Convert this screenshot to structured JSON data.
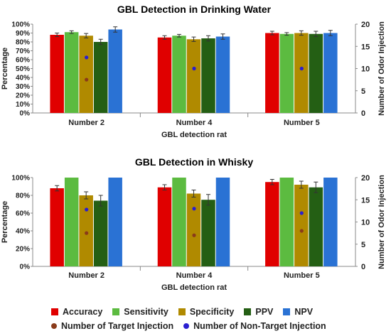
{
  "chart_data": [
    {
      "type": "bar",
      "title": "GBL Detection in Drinking Water",
      "xlabel": "GBL detection rat",
      "ylabel": "Percentage",
      "y2label": "Number of Odor Injection",
      "ylim": [
        0,
        100
      ],
      "y2lim": [
        0,
        20
      ],
      "yticks": [
        "0%",
        "10%",
        "20%",
        "30%",
        "40%",
        "50%",
        "60%",
        "70%",
        "80%",
        "90%",
        "100%"
      ],
      "y2ticks": [
        "0",
        "5",
        "10",
        "15",
        "20"
      ],
      "categories": [
        "Number 2",
        "Number 4",
        "Number 5"
      ],
      "series": [
        {
          "name": "Accuracy",
          "values": [
            88,
            85,
            90
          ],
          "errors": [
            2,
            2,
            2
          ]
        },
        {
          "name": "Sensitivity",
          "values": [
            91,
            87,
            89
          ],
          "errors": [
            1.5,
            1.5,
            1.5
          ]
        },
        {
          "name": "Specificity",
          "values": [
            87,
            83,
            90
          ],
          "errors": [
            2.5,
            2.5,
            2.5
          ]
        },
        {
          "name": "PPV",
          "values": [
            80,
            84,
            89
          ],
          "errors": [
            3,
            3,
            3
          ]
        },
        {
          "name": "NPV",
          "values": [
            94,
            86,
            90
          ],
          "errors": [
            3,
            3,
            3
          ]
        }
      ],
      "dot_series": [
        {
          "name": "Number of Target Injection",
          "values": [
            7.5,
            10,
            10
          ]
        },
        {
          "name": "Number of Non-Target Injection",
          "values": [
            12.5,
            10,
            10
          ]
        }
      ],
      "grid": false
    },
    {
      "type": "bar",
      "title": "GBL Detection in Whisky",
      "xlabel": "GBL detection rat",
      "ylabel": "Percentage",
      "y2label": "Number of Odor Injection",
      "ylim": [
        0,
        100
      ],
      "y2lim": [
        0,
        20
      ],
      "yticks": [
        "0%",
        "20%",
        "40%",
        "60%",
        "80%",
        "100%"
      ],
      "y2ticks": [
        "0",
        "5",
        "10",
        "15",
        "20"
      ],
      "categories": [
        "Number 2",
        "Number 4",
        "Number 5"
      ],
      "series": [
        {
          "name": "Accuracy",
          "values": [
            88,
            89,
            95
          ],
          "errors": [
            3,
            3,
            3
          ]
        },
        {
          "name": "Sensitivity",
          "values": [
            100,
            100,
            100
          ],
          "errors": [
            0,
            0,
            0
          ]
        },
        {
          "name": "Specificity",
          "values": [
            80,
            82,
            92
          ],
          "errors": [
            4,
            4,
            4
          ]
        },
        {
          "name": "PPV",
          "values": [
            74,
            75,
            89
          ],
          "errors": [
            6,
            6,
            6
          ]
        },
        {
          "name": "NPV",
          "values": [
            100,
            100,
            100
          ],
          "errors": [
            0,
            0,
            0
          ]
        }
      ],
      "dot_series": [
        {
          "name": "Number of Target Injection",
          "values": [
            7.5,
            7,
            8
          ]
        },
        {
          "name": "Number of Non-Target Injection",
          "values": [
            12.8,
            13,
            12
          ]
        }
      ],
      "grid": false
    }
  ],
  "colors": {
    "Accuracy": "#e00000",
    "Sensitivity": "#5cbb40",
    "Specificity": "#b08a00",
    "PPV": "#245f14",
    "NPV": "#2a72d4",
    "Number of Target Injection": "#8a3b1a",
    "Number of Non-Target Injection": "#2a1fd0"
  },
  "legend": {
    "row1": [
      "Accuracy",
      "Sensitivity",
      "Specificity",
      "PPV",
      "NPV"
    ],
    "row2": [
      "Number of Target Injection",
      "Number of Non-Target Injection"
    ]
  }
}
